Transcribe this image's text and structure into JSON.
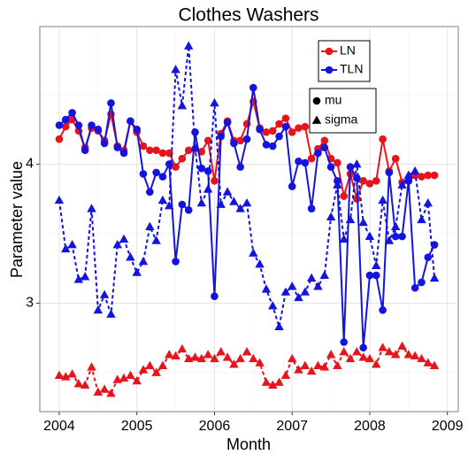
{
  "chart_data": {
    "type": "line",
    "title": "Clothes Washers",
    "x_label": "Month",
    "y_label": "Parameter value",
    "x": [
      2004,
      2004.083,
      2004.167,
      2004.25,
      2004.333,
      2004.417,
      2004.5,
      2004.583,
      2004.667,
      2004.75,
      2004.833,
      2004.917,
      2005,
      2005.083,
      2005.167,
      2005.25,
      2005.333,
      2005.417,
      2005.5,
      2005.583,
      2005.667,
      2005.75,
      2005.833,
      2005.917,
      2006,
      2006.083,
      2006.167,
      2006.25,
      2006.333,
      2006.417,
      2006.5,
      2006.583,
      2006.667,
      2006.75,
      2006.833,
      2006.917,
      2007,
      2007.083,
      2007.167,
      2007.25,
      2007.333,
      2007.417,
      2007.5,
      2007.583,
      2007.667,
      2007.75,
      2007.833,
      2007.917,
      2008,
      2008.083,
      2008.167,
      2008.25,
      2008.333,
      2008.417,
      2008.5,
      2008.583,
      2008.667,
      2008.75,
      2008.833
    ],
    "series": [
      {
        "name": "LN",
        "color": "#e8141c",
        "mu": [
          4.18,
          4.27,
          4.32,
          4.24,
          4.12,
          4.26,
          4.24,
          4.17,
          4.36,
          4.13,
          4.1,
          4.31,
          4.23,
          4.13,
          4.1,
          4.1,
          4.08,
          4.08,
          3.98,
          4.04,
          4.1,
          4.11,
          4.09,
          4.17,
          3.88,
          4.22,
          4.31,
          4.17,
          4.17,
          4.29,
          4.45,
          4.26,
          4.23,
          4.24,
          4.29,
          4.33,
          4.23,
          4.26,
          4.27,
          4.04,
          4.11,
          4.17,
          4.04,
          4.01,
          3.77,
          3.93,
          3.75,
          3.88,
          3.86,
          3.88,
          4.18,
          3.95,
          4.04,
          3.87,
          3.88,
          3.92,
          3.91,
          3.92,
          3.92
        ],
        "sigma": [
          2.48,
          2.47,
          2.49,
          2.42,
          2.41,
          2.54,
          2.36,
          2.38,
          2.35,
          2.45,
          2.46,
          2.48,
          2.44,
          2.52,
          2.55,
          2.5,
          2.55,
          2.63,
          2.62,
          2.67,
          2.6,
          2.61,
          2.6,
          2.63,
          2.6,
          2.65,
          2.61,
          2.56,
          2.6,
          2.65,
          2.6,
          2.57,
          2.43,
          2.41,
          2.43,
          2.48,
          2.6,
          2.52,
          2.55,
          2.51,
          2.55,
          2.54,
          2.63,
          2.55,
          2.65,
          2.6,
          2.65,
          2.61,
          2.6,
          2.56,
          2.68,
          2.65,
          2.63,
          2.69,
          2.63,
          2.62,
          2.6,
          2.57,
          2.55
        ]
      },
      {
        "name": "TLN",
        "color": "#1414e0",
        "mu": [
          4.28,
          4.32,
          4.37,
          4.28,
          4.1,
          4.28,
          4.25,
          4.15,
          4.44,
          4.12,
          4.08,
          4.31,
          4.25,
          3.93,
          3.8,
          3.94,
          3.91,
          4.0,
          3.3,
          3.71,
          3.67,
          4.23,
          3.97,
          3.95,
          3.05,
          4.2,
          4.3,
          4.15,
          3.98,
          4.18,
          4.55,
          4.25,
          4.14,
          4.13,
          4.2,
          4.27,
          3.84,
          4.02,
          4.01,
          3.68,
          4.08,
          4.12,
          3.98,
          3.88,
          2.72,
          3.98,
          3.9,
          2.68,
          3.2,
          3.2,
          2.95,
          3.94,
          3.48,
          3.48,
          3.88,
          3.11,
          3.15,
          3.33,
          3.42
        ],
        "sigma": [
          3.74,
          3.39,
          3.42,
          3.17,
          3.19,
          3.68,
          2.95,
          3.06,
          2.92,
          3.42,
          3.46,
          3.33,
          3.22,
          3.3,
          3.55,
          3.45,
          3.74,
          3.7,
          4.68,
          4.42,
          4.85,
          4.12,
          3.72,
          3.82,
          4.44,
          3.71,
          3.8,
          3.73,
          3.68,
          3.72,
          3.36,
          3.28,
          3.1,
          2.98,
          2.83,
          3.08,
          3.12,
          3.04,
          3.08,
          3.18,
          3.12,
          3.2,
          3.62,
          3.85,
          3.46,
          3.6,
          4.0,
          3.58,
          3.48,
          3.27,
          3.74,
          3.45,
          3.55,
          3.85,
          3.92,
          3.95,
          3.6,
          3.72,
          3.18
        ]
      }
    ],
    "shape_legend": [
      "mu",
      "sigma"
    ],
    "xlim": [
      2003.75,
      2009.14
    ],
    "xticks": [
      2004,
      2005,
      2006,
      2007,
      2008,
      2009
    ],
    "ylim": [
      2.22,
      4.99
    ],
    "yticks": [
      3,
      4
    ],
    "grid": true
  }
}
